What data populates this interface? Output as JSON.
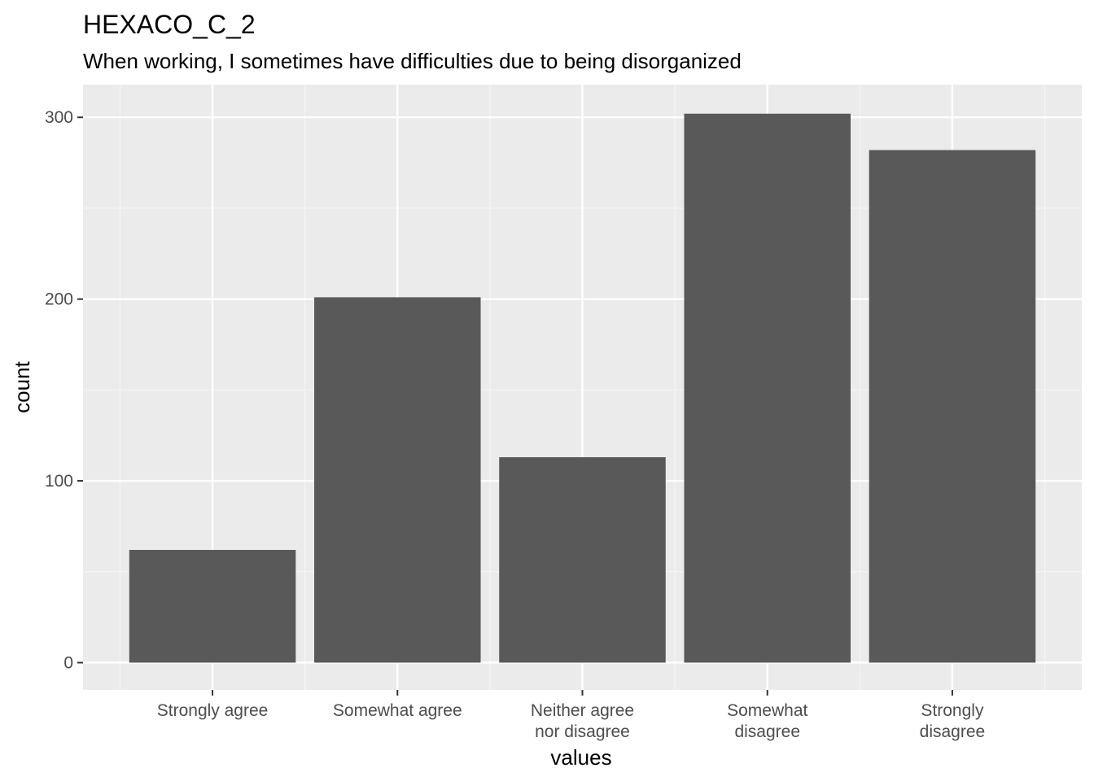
{
  "chart_data": {
    "type": "bar",
    "title": "HEXACO_C_2",
    "subtitle": "When working, I sometimes have difficulties due to being disorganized",
    "xlabel": "values",
    "ylabel": "count",
    "categories": [
      [
        "Strongly agree"
      ],
      [
        "Somewhat agree"
      ],
      [
        "Neither agree",
        "nor disagree"
      ],
      [
        "Somewhat",
        "disagree"
      ],
      [
        "Strongly",
        "disagree"
      ]
    ],
    "values": [
      62,
      201,
      113,
      302,
      282
    ],
    "ylim": [
      -15,
      318
    ],
    "yticks": [
      0,
      100,
      200,
      300
    ],
    "grid": true,
    "legend": "none",
    "colors": {
      "bar": "#595959",
      "panel": "#ebebeb",
      "grid_major": "#ffffff",
      "grid_minor": "#f5f5f5"
    }
  }
}
